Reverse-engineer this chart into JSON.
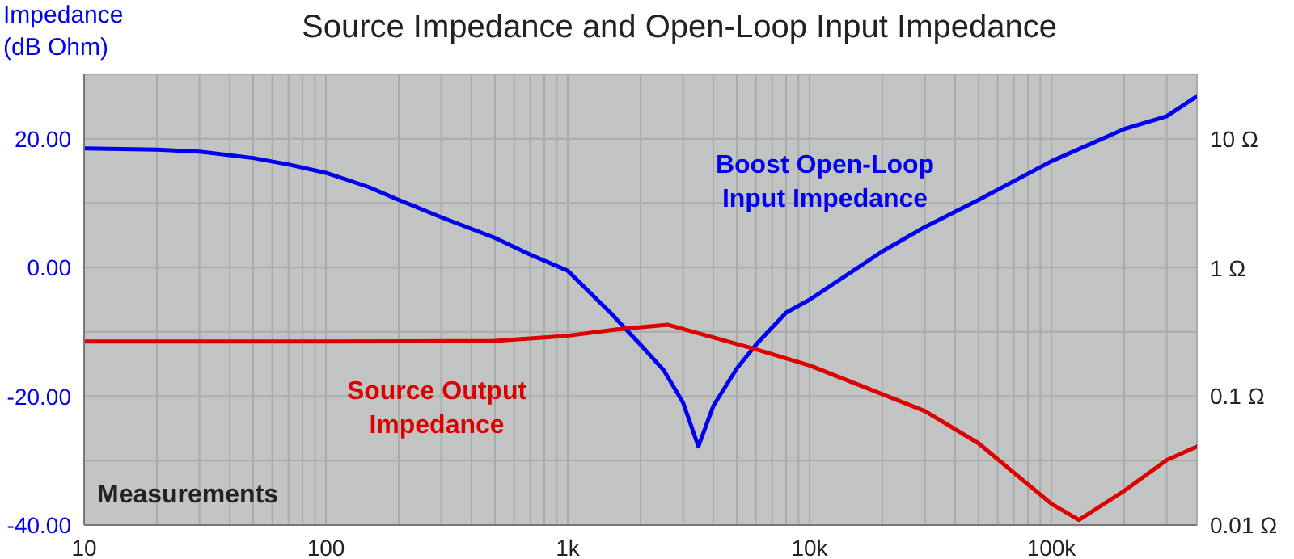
{
  "chart_data": {
    "type": "line",
    "title": "Source Impedance and Open-Loop Input Impedance",
    "ylabel": "Impedance\n(dB Ohm)",
    "annotations": [
      "Measurements",
      "10 Ω",
      "1 Ω",
      "0.1 Ω",
      "0.01 Ω"
    ],
    "log": "x",
    "grid": true,
    "marker": "none",
    "line_style": "solid",
    "xlim": [
      10,
      400000
    ],
    "xticks": [
      {
        "value": 10,
        "label": "10"
      },
      {
        "value": 20,
        "label": null
      },
      {
        "value": 30,
        "label": null
      },
      {
        "value": 40,
        "label": null
      },
      {
        "value": 50,
        "label": null
      },
      {
        "value": 60,
        "label": null
      },
      {
        "value": 70,
        "label": null
      },
      {
        "value": 80,
        "label": null
      },
      {
        "value": 90,
        "label": null
      },
      {
        "value": 100,
        "label": "100"
      },
      {
        "value": 200,
        "label": null
      },
      {
        "value": 300,
        "label": null
      },
      {
        "value": 400,
        "label": null
      },
      {
        "value": 500,
        "label": null
      },
      {
        "value": 600,
        "label": null
      },
      {
        "value": 700,
        "label": null
      },
      {
        "value": 800,
        "label": null
      },
      {
        "value": 900,
        "label": null
      },
      {
        "value": 1000,
        "label": "1k"
      },
      {
        "value": 2000,
        "label": null
      },
      {
        "value": 3000,
        "label": null
      },
      {
        "value": 4000,
        "label": null
      },
      {
        "value": 5000,
        "label": null
      },
      {
        "value": 6000,
        "label": null
      },
      {
        "value": 7000,
        "label": null
      },
      {
        "value": 8000,
        "label": null
      },
      {
        "value": 9000,
        "label": null
      },
      {
        "value": 10000,
        "label": "10k"
      },
      {
        "value": 20000,
        "label": null
      },
      {
        "value": 30000,
        "label": null
      },
      {
        "value": 40000,
        "label": null
      },
      {
        "value": 50000,
        "label": null
      },
      {
        "value": 60000,
        "label": null
      },
      {
        "value": 70000,
        "label": null
      },
      {
        "value": 80000,
        "label": null
      },
      {
        "value": 90000,
        "label": null
      },
      {
        "value": 100000,
        "label": "100k"
      },
      {
        "value": 200000,
        "label": null
      },
      {
        "value": 300000,
        "label": null
      },
      {
        "value": 400000,
        "label": null
      }
    ],
    "ylim": [
      -40,
      30
    ],
    "yticks": [
      {
        "value": -40,
        "label": "-40.00"
      },
      {
        "value": -30,
        "label": null
      },
      {
        "value": -20,
        "label": "-20.00"
      },
      {
        "value": -10,
        "label": null
      },
      {
        "value": 0,
        "label": "0.00"
      },
      {
        "value": 10,
        "label": null
      },
      {
        "value": 20,
        "label": "20.00"
      }
    ],
    "series": [
      {
        "name": "Boost Open-Loop\nInput Impedance",
        "color": "#0000ee",
        "x": [
          10,
          20,
          30,
          50,
          70,
          100,
          150,
          200,
          300,
          500,
          700,
          1000,
          1500,
          2000,
          2500,
          3000,
          3470,
          4000,
          5000,
          6000,
          8000,
          10000,
          20000,
          30000,
          50000,
          100000,
          200000,
          300000,
          400000
        ],
        "values": [
          18.5,
          18.3,
          18,
          17,
          16,
          14.7,
          12.5,
          10.5,
          7.8,
          4.6,
          2,
          -0.5,
          -7,
          -12,
          -16,
          -21,
          -27.8,
          -21.5,
          -15.7,
          -12,
          -7,
          -5,
          2.5,
          6.3,
          10.5,
          16.5,
          21.5,
          23.5,
          26.6
        ]
      },
      {
        "name": "Source Output\nImpedance",
        "color": "#dd0000",
        "x": [
          10,
          100,
          500,
          1000,
          1600,
          2600,
          6000,
          10000,
          30000,
          50000,
          100000,
          130000,
          200000,
          300000,
          400000
        ],
        "values": [
          -11.5,
          -11.5,
          -11.4,
          -10.6,
          -9.6,
          -8.9,
          -12.7,
          -15.2,
          -22.3,
          -27.3,
          -36.7,
          -39.2,
          -34.7,
          -29.9,
          -27.8
        ]
      }
    ]
  }
}
